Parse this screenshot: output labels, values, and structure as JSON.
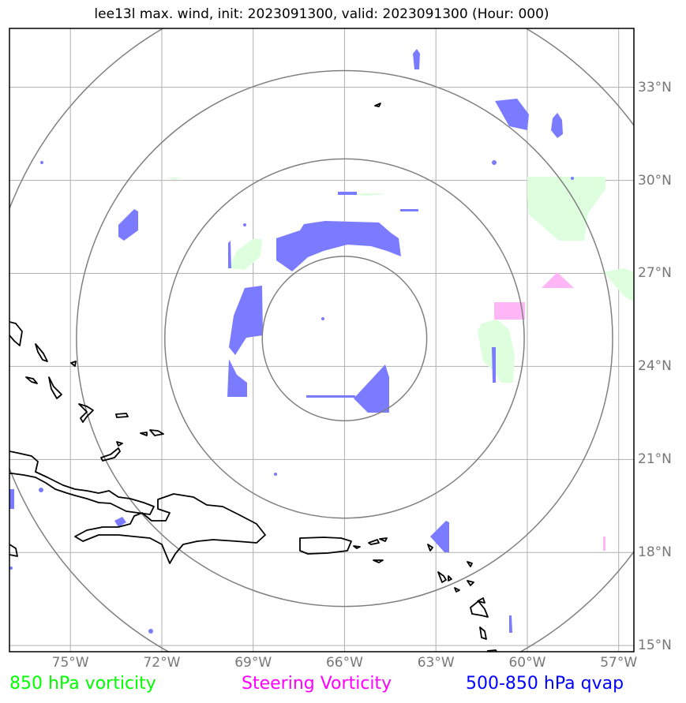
{
  "title": "lee13l max. wind, init: 2023091300, valid: 2023091300 (Hour: 000)",
  "map": {
    "lon_range": [
      -77,
      -56.5
    ],
    "lat_range": [
      14.8,
      34.9
    ],
    "lon_ticks": [
      {
        "lon": -75,
        "label": "75°W"
      },
      {
        "lon": -72,
        "label": "72°W"
      },
      {
        "lon": -69,
        "label": "69°W"
      },
      {
        "lon": -66,
        "label": "66°W"
      },
      {
        "lon": -63,
        "label": "63°W"
      },
      {
        "lon": -60,
        "label": "60°W"
      },
      {
        "lon": -57,
        "label": "57°W"
      }
    ],
    "lat_ticks": [
      {
        "lat": 33,
        "label": "33°N"
      },
      {
        "lat": 30,
        "label": "30°N"
      },
      {
        "lat": 27,
        "label": "27°N"
      },
      {
        "lat": 24,
        "label": "24°N"
      },
      {
        "lat": 21,
        "label": "21°N"
      },
      {
        "lat": 18,
        "label": "18°N"
      },
      {
        "lat": 15,
        "label": "15°N"
      }
    ],
    "storm_center": {
      "lon": -66.0,
      "lat": 24.9
    },
    "range_ring_radii_deg": [
      2.7,
      5.9,
      8.8,
      11.8
    ]
  },
  "legend": [
    {
      "label": "850 hPa vorticity",
      "color": "#00ff00"
    },
    {
      "label": "Steering Vorticity",
      "color": "#ff00ff"
    },
    {
      "label": "500-850 hPa qvap",
      "color": "#0000ff"
    }
  ],
  "colors": {
    "qvap_fill": "#7b7bff",
    "vorticity_fill": "#ddffdd",
    "steering_fill": "#ffb6f7",
    "coastline": "#000000",
    "gridline": "#b0b0b0",
    "range_ring": "#808080"
  }
}
